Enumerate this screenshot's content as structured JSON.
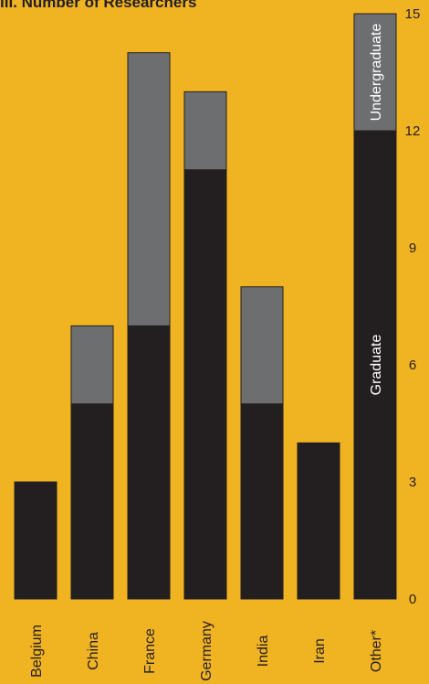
{
  "chart_data": {
    "type": "bar",
    "stacked": true,
    "orientation": "vertical",
    "title": "III. Number of Researchers",
    "categories": [
      "Belgium",
      "China",
      "France",
      "Germany",
      "India",
      "Iran",
      "Other*"
    ],
    "series": [
      {
        "name": "Graduate",
        "color": "#231F20",
        "values": [
          3,
          5,
          7,
          11,
          5,
          4,
          12
        ]
      },
      {
        "name": "Undergraduate",
        "color": "#6D6E70",
        "values": [
          0,
          2,
          7,
          2,
          3,
          0,
          3
        ]
      }
    ],
    "ylim": [
      0,
      15
    ],
    "yticks": [
      "0",
      "3",
      "6",
      "9",
      "12",
      "15"
    ],
    "y_axis_side": "right",
    "grid": false,
    "legend": "in-bar labels on Other* column",
    "background_color": "#F0B322"
  }
}
